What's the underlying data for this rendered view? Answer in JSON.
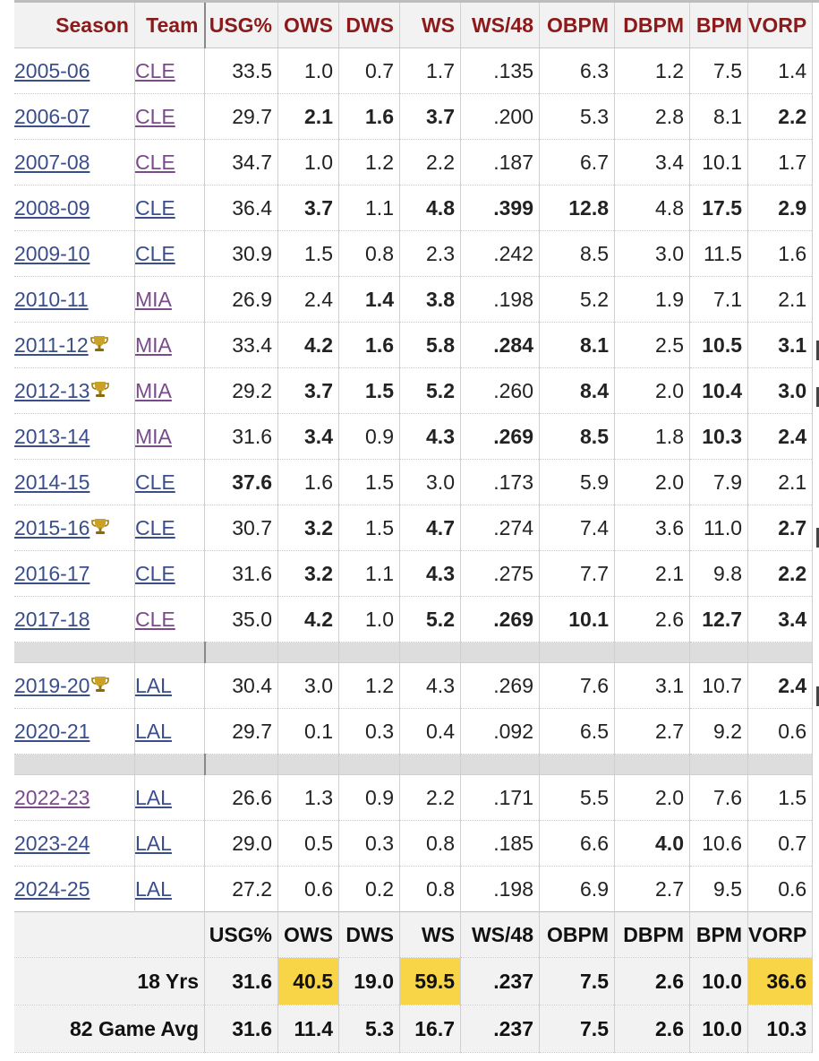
{
  "columns": [
    "Season",
    "Team",
    "USG%",
    "OWS",
    "DWS",
    "WS",
    "WS/48",
    "OBPM",
    "DBPM",
    "BPM",
    "VORP"
  ],
  "rows": [
    {
      "season": "2005-06",
      "trophy": false,
      "team": "CLE",
      "team_visited": true,
      "vals": [
        "33.5",
        "1.0",
        "0.7",
        "1.7",
        ".135",
        "6.3",
        "1.2",
        "7.5",
        "1.4"
      ],
      "bold": []
    },
    {
      "season": "2006-07",
      "trophy": false,
      "team": "CLE",
      "team_visited": true,
      "vals": [
        "29.7",
        "2.1",
        "1.6",
        "3.7",
        ".200",
        "5.3",
        "2.8",
        "8.1",
        "2.2"
      ],
      "bold": [
        1,
        2,
        3,
        8
      ]
    },
    {
      "season": "2007-08",
      "trophy": false,
      "team": "CLE",
      "team_visited": true,
      "vals": [
        "34.7",
        "1.0",
        "1.2",
        "2.2",
        ".187",
        "6.7",
        "3.4",
        "10.1",
        "1.7"
      ],
      "bold": []
    },
    {
      "season": "2008-09",
      "trophy": false,
      "team": "CLE",
      "team_visited": false,
      "vals": [
        "36.4",
        "3.7",
        "1.1",
        "4.8",
        ".399",
        "12.8",
        "4.8",
        "17.5",
        "2.9"
      ],
      "bold": [
        1,
        3,
        4,
        5,
        7,
        8
      ]
    },
    {
      "season": "2009-10",
      "trophy": false,
      "team": "CLE",
      "team_visited": false,
      "vals": [
        "30.9",
        "1.5",
        "0.8",
        "2.3",
        ".242",
        "8.5",
        "3.0",
        "11.5",
        "1.6"
      ],
      "bold": []
    },
    {
      "season": "2010-11",
      "trophy": false,
      "team": "MIA",
      "team_visited": true,
      "vals": [
        "26.9",
        "2.4",
        "1.4",
        "3.8",
        ".198",
        "5.2",
        "1.9",
        "7.1",
        "2.1"
      ],
      "bold": [
        2,
        3
      ]
    },
    {
      "season": "2011-12",
      "trophy": true,
      "team": "MIA",
      "team_visited": true,
      "vals": [
        "33.4",
        "4.2",
        "1.6",
        "5.8",
        ".284",
        "8.1",
        "2.5",
        "10.5",
        "3.1"
      ],
      "bold": [
        1,
        2,
        3,
        4,
        5,
        7,
        8
      ]
    },
    {
      "season": "2012-13",
      "trophy": true,
      "team": "MIA",
      "team_visited": true,
      "vals": [
        "29.2",
        "3.7",
        "1.5",
        "5.2",
        ".260",
        "8.4",
        "2.0",
        "10.4",
        "3.0"
      ],
      "bold": [
        1,
        2,
        3,
        5,
        7,
        8
      ]
    },
    {
      "season": "2013-14",
      "trophy": false,
      "team": "MIA",
      "team_visited": true,
      "vals": [
        "31.6",
        "3.4",
        "0.9",
        "4.3",
        ".269",
        "8.5",
        "1.8",
        "10.3",
        "2.4"
      ],
      "bold": [
        1,
        3,
        4,
        5,
        7,
        8
      ]
    },
    {
      "season": "2014-15",
      "trophy": false,
      "team": "CLE",
      "team_visited": false,
      "vals": [
        "37.6",
        "1.6",
        "1.5",
        "3.0",
        ".173",
        "5.9",
        "2.0",
        "7.9",
        "2.1"
      ],
      "bold": [
        0
      ]
    },
    {
      "season": "2015-16",
      "trophy": true,
      "team": "CLE",
      "team_visited": false,
      "vals": [
        "30.7",
        "3.2",
        "1.5",
        "4.7",
        ".274",
        "7.4",
        "3.6",
        "11.0",
        "2.7"
      ],
      "bold": [
        1,
        3,
        8
      ]
    },
    {
      "season": "2016-17",
      "trophy": false,
      "team": "CLE",
      "team_visited": false,
      "vals": [
        "31.6",
        "3.2",
        "1.1",
        "4.3",
        ".275",
        "7.7",
        "2.1",
        "9.8",
        "2.2"
      ],
      "bold": [
        1,
        3,
        8
      ]
    },
    {
      "season": "2017-18",
      "trophy": false,
      "team": "CLE",
      "team_visited": true,
      "vals": [
        "35.0",
        "4.2",
        "1.0",
        "5.2",
        ".269",
        "10.1",
        "2.6",
        "12.7",
        "3.4"
      ],
      "bold": [
        1,
        3,
        4,
        5,
        7,
        8
      ]
    },
    {
      "gap": true
    },
    {
      "season": "2019-20",
      "trophy": true,
      "team": "LAL",
      "team_visited": false,
      "vals": [
        "30.4",
        "3.0",
        "1.2",
        "4.3",
        ".269",
        "7.6",
        "3.1",
        "10.7",
        "2.4"
      ],
      "bold": [
        8
      ]
    },
    {
      "season": "2020-21",
      "trophy": false,
      "team": "LAL",
      "team_visited": false,
      "vals": [
        "29.7",
        "0.1",
        "0.3",
        "0.4",
        ".092",
        "6.5",
        "2.7",
        "9.2",
        "0.6"
      ],
      "bold": []
    },
    {
      "gap": true
    },
    {
      "season": "2022-23",
      "trophy": false,
      "team": "LAL",
      "team_visited": false,
      "season_visited": true,
      "vals": [
        "26.6",
        "1.3",
        "0.9",
        "2.2",
        ".171",
        "5.5",
        "2.0",
        "7.6",
        "1.5"
      ],
      "bold": []
    },
    {
      "season": "2023-24",
      "trophy": false,
      "team": "LAL",
      "team_visited": false,
      "vals": [
        "29.0",
        "0.5",
        "0.3",
        "0.8",
        ".185",
        "6.6",
        "4.0",
        "10.6",
        "0.7"
      ],
      "bold": [
        6
      ]
    },
    {
      "season": "2024-25",
      "trophy": false,
      "team": "LAL",
      "team_visited": false,
      "vals": [
        "27.2",
        "0.6",
        "0.2",
        "0.8",
        ".198",
        "6.9",
        "2.7",
        "9.5",
        "0.6"
      ],
      "bold": []
    }
  ],
  "footer": {
    "header_vals": [
      "USG%",
      "OWS",
      "DWS",
      "WS",
      "WS/48",
      "OBPM",
      "DBPM",
      "BPM",
      "VORP"
    ],
    "totals": {
      "label": "18 Yrs",
      "vals": [
        "31.6",
        "40.5",
        "19.0",
        "59.5",
        ".237",
        "7.5",
        "2.6",
        "10.0",
        "36.6"
      ],
      "highlight": [
        1,
        3,
        8
      ]
    },
    "avg": {
      "label": "82 Game Avg",
      "vals": [
        "31.6",
        "11.4",
        "5.3",
        "16.7",
        ".237",
        "7.5",
        "2.6",
        "10.0",
        "10.3"
      ]
    }
  },
  "colors": {
    "header_text": "#8b1a1a",
    "link": "#3b4e8c",
    "link_visited": "#7b4a8c",
    "highlight": "#f7d547"
  },
  "icons": {
    "trophy": "trophy-icon"
  }
}
